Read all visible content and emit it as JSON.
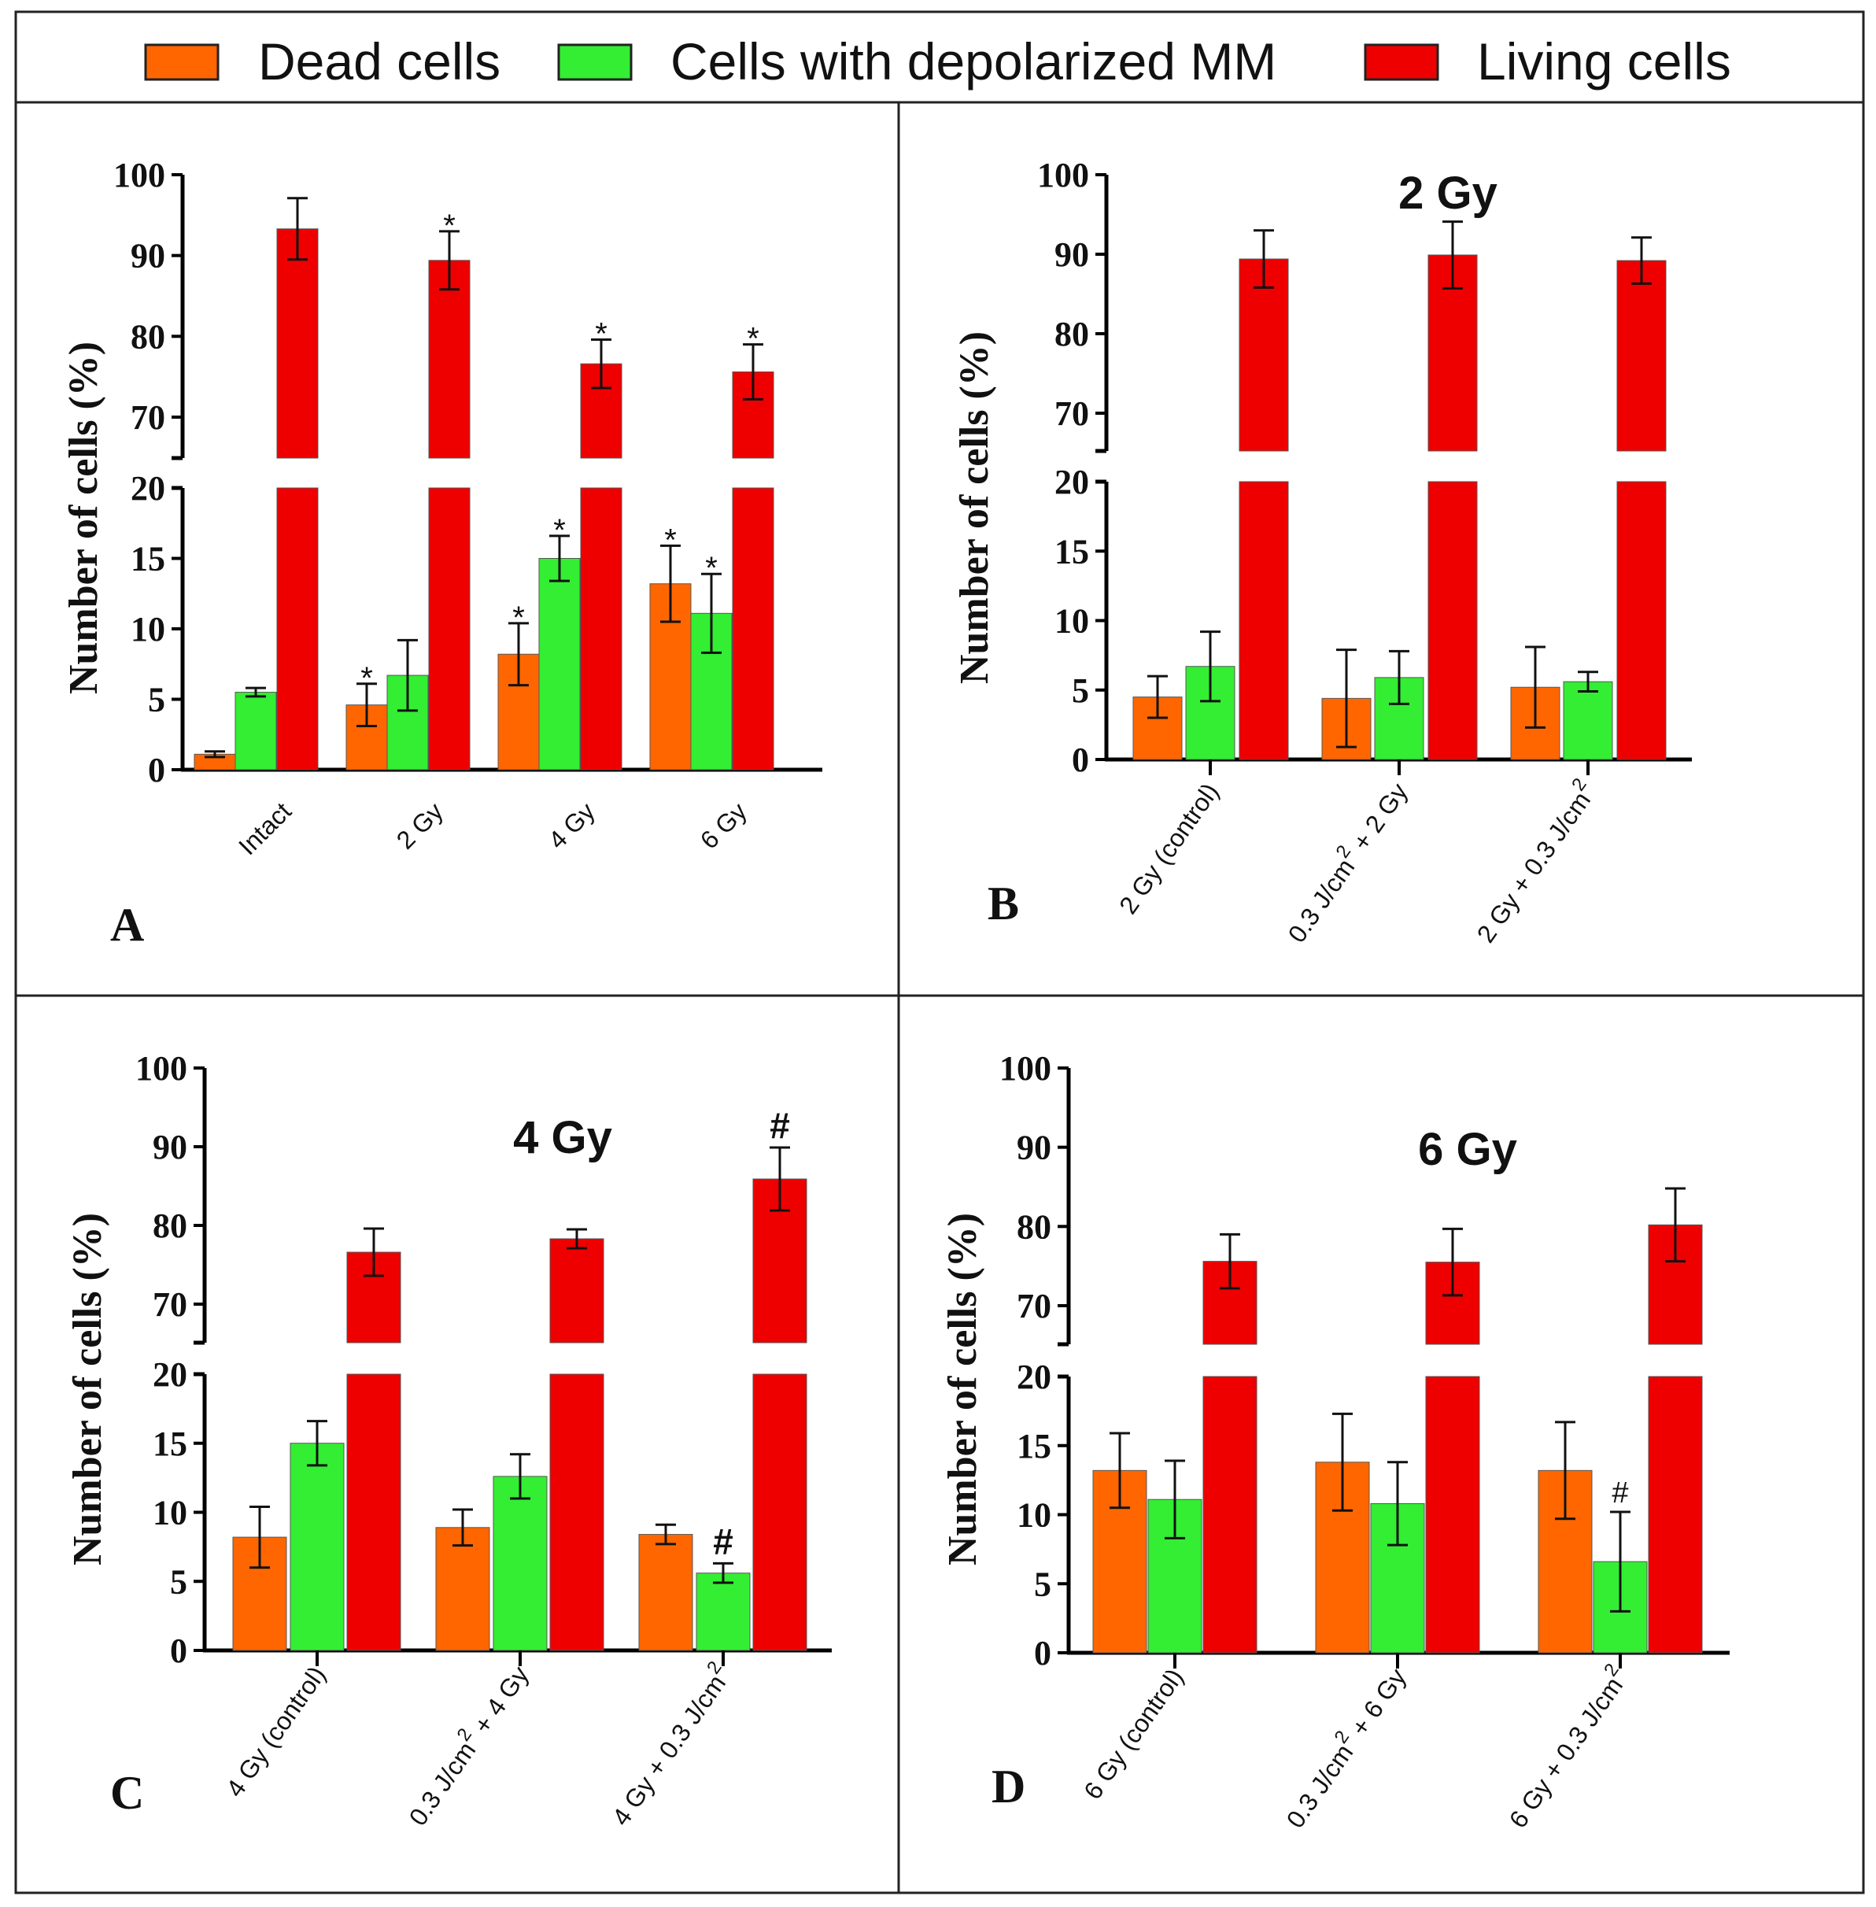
{
  "legend": {
    "items": [
      {
        "label": "Dead cells",
        "color": "#ff6600"
      },
      {
        "label": "Cells with depolarized MM",
        "color": "#33ee33"
      },
      {
        "label": "Living cells",
        "color": "#ee0000"
      }
    ]
  },
  "chart_data": [
    {
      "panel": "A",
      "type": "bar",
      "title": "",
      "ylabel": "Number of cells (%)",
      "y_ticks_lower": [
        0,
        5,
        10,
        15,
        20
      ],
      "y_ticks_upper": [
        70,
        80,
        90,
        100
      ],
      "y_break": [
        20,
        65
      ],
      "categories": [
        "Intact",
        "2 Gy",
        "4 Gy",
        "6 Gy"
      ],
      "series": [
        {
          "name": "Dead cells",
          "values": [
            1.1,
            4.6,
            8.2,
            13.2
          ],
          "errors": [
            0.2,
            1.5,
            2.2,
            2.7
          ],
          "annotations": [
            "",
            "*",
            "*",
            "*"
          ]
        },
        {
          "name": "Cells with depolarized MM",
          "values": [
            5.5,
            6.7,
            15.0,
            11.1
          ],
          "errors": [
            0.3,
            2.5,
            1.6,
            2.8
          ],
          "annotations": [
            "",
            "",
            "*",
            "*"
          ]
        },
        {
          "name": "Living cells",
          "values": [
            93.3,
            89.4,
            76.6,
            75.6
          ],
          "errors": [
            3.8,
            3.6,
            3.0,
            3.4
          ],
          "annotations": [
            "",
            "*",
            "*",
            "*"
          ]
        }
      ]
    },
    {
      "panel": "B",
      "type": "bar",
      "title": "2 Gy",
      "ylabel": "Number of cells (%)",
      "y_ticks_lower": [
        0,
        5,
        10,
        15,
        20
      ],
      "y_ticks_upper": [
        70,
        80,
        90,
        100
      ],
      "y_break": [
        20,
        65
      ],
      "categories": [
        "2 Gy (control)",
        "0.3 J/cm² + 2 Gy",
        "2 Gy + 0.3 J/cm²"
      ],
      "category_labels": [
        {
          "text": "2 Gy (control)",
          "sup": "",
          "tail": ""
        },
        {
          "text": "0.3 J/cm",
          "sup": "2",
          "tail": " + 2 Gy"
        },
        {
          "text": "2 Gy + 0.3 J/cm",
          "sup": "2",
          "tail": ""
        }
      ],
      "series": [
        {
          "name": "Dead cells",
          "values": [
            4.5,
            4.4,
            5.2
          ],
          "errors": [
            1.5,
            3.5,
            2.9
          ],
          "annotations": [
            "",
            "",
            ""
          ]
        },
        {
          "name": "Cells with depolarized MM",
          "values": [
            6.7,
            5.9,
            5.6
          ],
          "errors": [
            2.5,
            1.9,
            0.7
          ],
          "annotations": [
            "",
            "",
            ""
          ]
        },
        {
          "name": "Living cells",
          "values": [
            89.4,
            89.9,
            89.2
          ],
          "errors": [
            3.6,
            4.2,
            2.9
          ],
          "annotations": [
            "",
            "",
            ""
          ]
        }
      ]
    },
    {
      "panel": "C",
      "type": "bar",
      "title": "4 Gy",
      "ylabel": "Number of cells (%)",
      "y_ticks_lower": [
        0,
        5,
        10,
        15,
        20
      ],
      "y_ticks_upper": [
        70,
        80,
        90,
        100
      ],
      "y_break": [
        20,
        65
      ],
      "categories": [
        "4 Gy (control)",
        "0.3 J/cm² + 4 Gy",
        "4 Gy + 0.3 J/cm²"
      ],
      "category_labels": [
        {
          "text": "4 Gy (control)",
          "sup": "",
          "tail": ""
        },
        {
          "text": "0.3 J/cm",
          "sup": "2",
          "tail": " + 4 Gy"
        },
        {
          "text": "4 Gy + 0.3 J/cm",
          "sup": "2",
          "tail": ""
        }
      ],
      "series": [
        {
          "name": "Dead cells",
          "values": [
            8.2,
            8.9,
            8.4
          ],
          "errors": [
            2.2,
            1.3,
            0.7
          ],
          "annotations": [
            "",
            "",
            ""
          ]
        },
        {
          "name": "Cells with depolarized MM",
          "values": [
            15.0,
            12.6,
            5.6
          ],
          "errors": [
            1.6,
            1.6,
            0.7
          ],
          "annotations": [
            "",
            "",
            "#"
          ]
        },
        {
          "name": "Living cells",
          "values": [
            76.6,
            78.3,
            85.9
          ],
          "errors": [
            3.0,
            1.2,
            4.0
          ],
          "annotations": [
            "",
            "",
            "#"
          ]
        }
      ]
    },
    {
      "panel": "D",
      "type": "bar",
      "title": "6 Gy",
      "ylabel": "Number of cells (%)",
      "y_ticks_lower": [
        0,
        5,
        10,
        15,
        20
      ],
      "y_ticks_upper": [
        70,
        80,
        90,
        100
      ],
      "y_break": [
        20,
        65
      ],
      "categories": [
        "6 Gy (control)",
        "0.3 J/cm² + 6 Gy",
        "6 Gy + 0.3 J/cm²"
      ],
      "category_labels": [
        {
          "text": "6 Gy (control)",
          "sup": "",
          "tail": ""
        },
        {
          "text": "0.3 J/cm",
          "sup": "2",
          "tail": " + 6 Gy"
        },
        {
          "text": "6 Gy + 0.3 J/cm",
          "sup": "2",
          "tail": ""
        }
      ],
      "series": [
        {
          "name": "Dead cells",
          "values": [
            13.2,
            13.8,
            13.2
          ],
          "errors": [
            2.7,
            3.5,
            3.5
          ],
          "annotations": [
            "",
            "",
            ""
          ]
        },
        {
          "name": "Cells with depolarized MM",
          "values": [
            11.1,
            10.8,
            6.6
          ],
          "errors": [
            2.8,
            3.0,
            3.6
          ],
          "annotations": [
            "",
            "",
            "#"
          ]
        },
        {
          "name": "Living cells",
          "values": [
            75.6,
            75.5,
            80.2
          ],
          "errors": [
            3.4,
            4.2,
            4.6
          ],
          "annotations": [
            "",
            "",
            ""
          ]
        }
      ]
    }
  ]
}
